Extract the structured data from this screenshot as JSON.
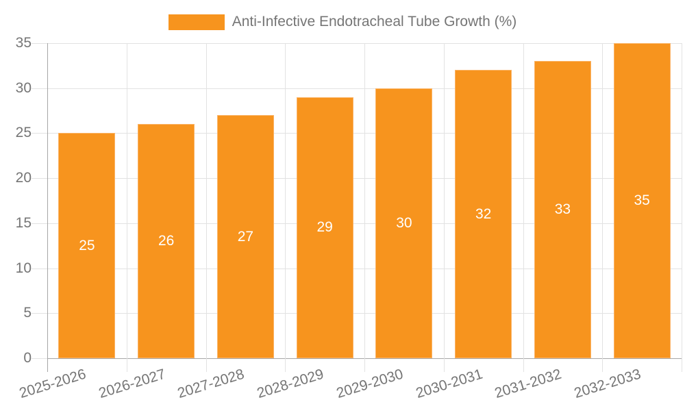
{
  "legend": {
    "items": [
      {
        "label": "Anti-Infective Endotracheal Tube Growth (%)",
        "color": "#F7941E"
      }
    ],
    "position": "top-center"
  },
  "chart_data": {
    "type": "bar",
    "title": "Anti-Infective Endotracheal Tube Growth (%)",
    "categories": [
      "2025-2026",
      "2026-2027",
      "2027-2028",
      "2028-2029",
      "2029-2030",
      "2030-2031",
      "2031-2032",
      "2032-2033"
    ],
    "values": [
      25,
      26,
      27,
      29,
      30,
      32,
      33,
      35
    ],
    "series_name": "Anti-Infective Endotracheal Tube Growth (%)",
    "xlabel": "",
    "ylabel": "",
    "ylim": [
      0,
      35
    ],
    "yticks": [
      0,
      5,
      10,
      15,
      20,
      25,
      30,
      35
    ],
    "grid": true,
    "legend_position": "top",
    "value_label_position": "inside-center",
    "x_label_rotation_deg": -17,
    "colors": {
      "bar": "#F7941E",
      "bar_edge": "#FBB467",
      "value_label": "#FFFFFF",
      "axis_text": "#757575",
      "axis_line": "#A6A6A6",
      "gridline": "#E2E2E2",
      "background": "#FFFFFF"
    }
  }
}
